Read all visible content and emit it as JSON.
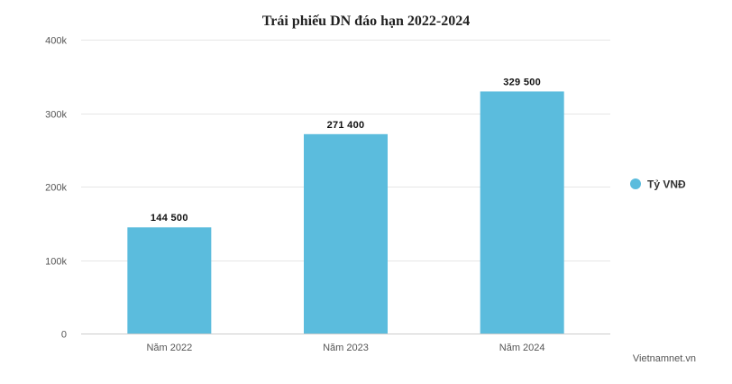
{
  "chart_data": {
    "type": "bar",
    "title": "Trái phiếu DN đáo hạn 2022-2024",
    "categories": [
      "Năm 2022",
      "Năm 2023",
      "Năm 2024"
    ],
    "series": [
      {
        "name": "Tỷ VNĐ",
        "values": [
          144500,
          271400,
          329500
        ],
        "value_labels": [
          "144 500",
          "271 400",
          "329 500"
        ],
        "color": "#5bbcdd"
      }
    ],
    "ylim": [
      0,
      400000
    ],
    "yticks": [
      0,
      100000,
      200000,
      300000,
      400000
    ],
    "ytick_labels": [
      "0",
      "100k",
      "200k",
      "300k",
      "400k"
    ],
    "xlabel": "",
    "ylabel": "",
    "grid": true,
    "legend_position": "right"
  },
  "source": "Vietnamnet.vn"
}
